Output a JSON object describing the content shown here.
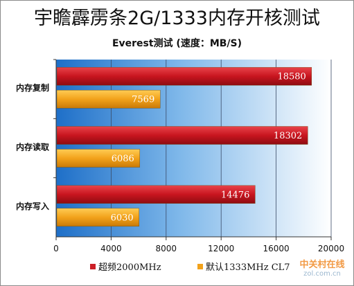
{
  "chart_data": {
    "type": "bar",
    "title": "宇瞻霹雳条2G/1333内存开核测试",
    "subtitle": "Everest测试 (速度：MB/S)",
    "categories": [
      "内存复制",
      "内存读取",
      "内存写入"
    ],
    "series": [
      {
        "name": "超频2000MHz",
        "values": [
          18580,
          18302,
          14476
        ],
        "color": "#cc1f27"
      },
      {
        "name": "默认1333MHz CL7",
        "values": [
          7569,
          6086,
          6030
        ],
        "color": "#f2a21b"
      }
    ],
    "xlim": [
      0,
      20000
    ],
    "xticks": [
      "0",
      "4000",
      "8000",
      "12000",
      "16000",
      "20000"
    ],
    "grid": true,
    "legend_position": "bottom",
    "orientation": "horizontal"
  },
  "watermark": {
    "line1": "中关村在线",
    "line2": "zol.com.cn"
  }
}
